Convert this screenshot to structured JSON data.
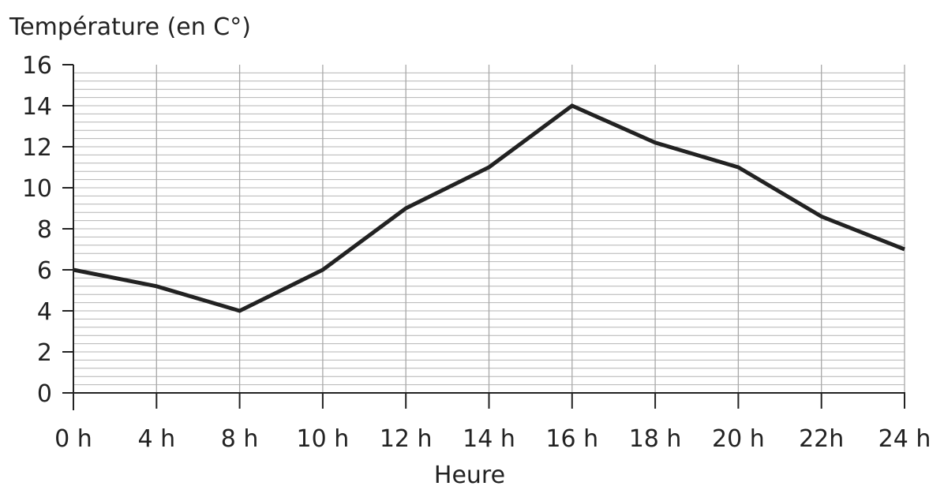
{
  "chart_data": {
    "type": "line",
    "ylabel": "Température (en C°)",
    "xlabel": "Heure",
    "categories": [
      "0 h",
      "4 h",
      "8 h",
      "10 h",
      "12 h",
      "14 h",
      "16 h",
      "18 h",
      "20 h",
      "22h",
      "24 h"
    ],
    "y_ticks": [
      "0",
      "2",
      "4",
      "6",
      "8",
      "10",
      "12",
      "14",
      "16"
    ],
    "ylim": [
      0,
      16
    ],
    "y_minor_step": 0.4,
    "grid": true,
    "series": [
      {
        "values": [
          6,
          5.2,
          4,
          6,
          9,
          11,
          14,
          12.2,
          11,
          8.6,
          7
        ],
        "color": "#222222"
      }
    ]
  }
}
